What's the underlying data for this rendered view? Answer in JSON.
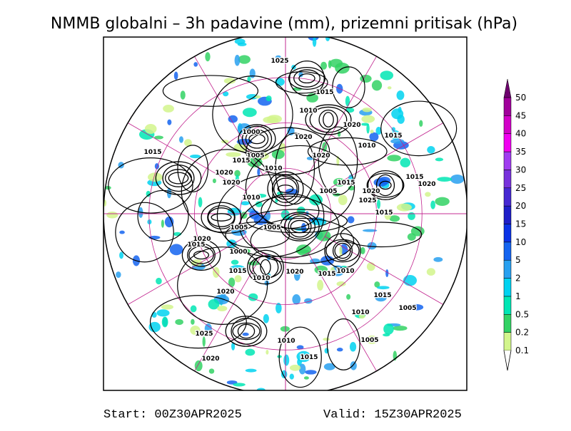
{
  "header": {
    "title": "NMMB globalni – 3h padavine (mm), prizemni pritisak (hPa)"
  },
  "map": {
    "contour_labels": [
      "1025",
      "1015",
      "1010",
      "1020",
      "1020",
      "1015",
      "1010",
      "1020",
      "1000",
      "1005",
      "1015",
      "1010",
      "1015",
      "1020",
      "1020",
      "1015",
      "1015",
      "1020",
      "1005",
      "1020",
      "1025",
      "1010",
      "1015",
      "1005",
      "1005",
      "1020",
      "1015",
      "1000",
      "1015",
      "1010",
      "1020",
      "1015",
      "1010",
      "1020",
      "1015",
      "1005",
      "1010",
      "1025",
      "1010",
      "1005",
      "1020",
      "1015"
    ]
  },
  "legend": [
    {
      "label": "0.1",
      "color": "#d2f58c"
    },
    {
      "label": "0.2",
      "color": "#32d264"
    },
    {
      "label": "0.5",
      "color": "#00e6b4"
    },
    {
      "label": "1",
      "color": "#00d2f0"
    },
    {
      "label": "2",
      "color": "#28a0f0"
    },
    {
      "label": "5",
      "color": "#1464f0"
    },
    {
      "label": "10",
      "color": "#0a32e6"
    },
    {
      "label": "15",
      "color": "#1e1ec8"
    },
    {
      "label": "20",
      "color": "#4628d2"
    },
    {
      "label": "25",
      "color": "#7832dc"
    },
    {
      "label": "30",
      "color": "#a03cf0"
    },
    {
      "label": "35",
      "color": "#f000f0"
    },
    {
      "label": "40",
      "color": "#d200c8"
    },
    {
      "label": "45",
      "color": "#a0009b"
    },
    {
      "label": "50",
      "color": "#6e006e"
    }
  ],
  "footer": {
    "start": "Start: 00Z30APR2025",
    "valid": "Valid: 15Z30APR2025"
  }
}
